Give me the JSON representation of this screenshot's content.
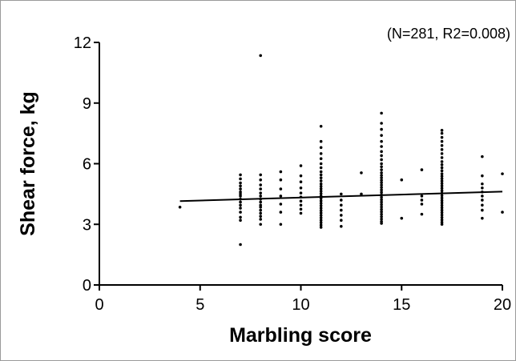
{
  "chart_data": {
    "type": "scatter",
    "annotation": "(N=281, R2=0.008)",
    "xlabel": "Marbling score",
    "ylabel": "Shear force, kg",
    "xlim": [
      0,
      20
    ],
    "ylim": [
      0,
      12
    ],
    "x_ticks": [
      0,
      5,
      10,
      15,
      20
    ],
    "y_ticks": [
      0,
      3,
      6,
      9,
      12
    ],
    "x_tick_labels": [
      "0",
      "5",
      "10",
      "15",
      "20"
    ],
    "y_tick_labels": [
      "0",
      "3",
      "6",
      "9",
      "12"
    ],
    "grid": false,
    "point_color": "#000000",
    "trendline": {
      "x": [
        4,
        20
      ],
      "y": [
        4.15,
        4.62
      ]
    },
    "points": [
      [
        4,
        3.85
      ],
      [
        7,
        5.45
      ],
      [
        7,
        5.25
      ],
      [
        7,
        5.05
      ],
      [
        7,
        4.9
      ],
      [
        7,
        4.75
      ],
      [
        7,
        4.6
      ],
      [
        7,
        4.5
      ],
      [
        7,
        4.4
      ],
      [
        7,
        4.25
      ],
      [
        7,
        4.1
      ],
      [
        7,
        3.95
      ],
      [
        7,
        3.8
      ],
      [
        7,
        3.6
      ],
      [
        7,
        3.35
      ],
      [
        7,
        3.2
      ],
      [
        7,
        2.0
      ],
      [
        8,
        11.35
      ],
      [
        8,
        5.45
      ],
      [
        8,
        5.2
      ],
      [
        8,
        4.95
      ],
      [
        8,
        4.75
      ],
      [
        8,
        4.55
      ],
      [
        8,
        4.4
      ],
      [
        8,
        4.25
      ],
      [
        8,
        4.1
      ],
      [
        8,
        3.95
      ],
      [
        8,
        3.85
      ],
      [
        8,
        3.7
      ],
      [
        8,
        3.55
      ],
      [
        8,
        3.4
      ],
      [
        8,
        3.25
      ],
      [
        8,
        3.0
      ],
      [
        9,
        5.6
      ],
      [
        9,
        5.2
      ],
      [
        9,
        4.75
      ],
      [
        9,
        4.4
      ],
      [
        9,
        4.0
      ],
      [
        9,
        3.6
      ],
      [
        9,
        3.0
      ],
      [
        10,
        5.9
      ],
      [
        10,
        5.4
      ],
      [
        10,
        5.1
      ],
      [
        10,
        4.8
      ],
      [
        10,
        4.55
      ],
      [
        10,
        4.35
      ],
      [
        10,
        4.15
      ],
      [
        10,
        3.95
      ],
      [
        10,
        3.75
      ],
      [
        10,
        3.55
      ],
      [
        11,
        7.85
      ],
      [
        11,
        7.1
      ],
      [
        11,
        6.8
      ],
      [
        11,
        6.5
      ],
      [
        11,
        6.25
      ],
      [
        11,
        6.0
      ],
      [
        11,
        5.8
      ],
      [
        11,
        5.6
      ],
      [
        11,
        5.45
      ],
      [
        11,
        5.3
      ],
      [
        11,
        5.15
      ],
      [
        11,
        5.0
      ],
      [
        11,
        4.88
      ],
      [
        11,
        4.76
      ],
      [
        11,
        4.64
      ],
      [
        11,
        4.52
      ],
      [
        11,
        4.4
      ],
      [
        11,
        4.28
      ],
      [
        11,
        4.16
      ],
      [
        11,
        4.04
      ],
      [
        11,
        3.92
      ],
      [
        11,
        3.8
      ],
      [
        11,
        3.68
      ],
      [
        11,
        3.56
      ],
      [
        11,
        3.44
      ],
      [
        11,
        3.32
      ],
      [
        11,
        3.2
      ],
      [
        11,
        3.08
      ],
      [
        11,
        2.96
      ],
      [
        11,
        2.85
      ],
      [
        12,
        4.5
      ],
      [
        12,
        4.2
      ],
      [
        12,
        3.95
      ],
      [
        12,
        3.7
      ],
      [
        12,
        3.45
      ],
      [
        12,
        3.2
      ],
      [
        12,
        2.9
      ],
      [
        13,
        5.55
      ],
      [
        13,
        4.5
      ],
      [
        14,
        8.5
      ],
      [
        14,
        8.0
      ],
      [
        14,
        7.7
      ],
      [
        14,
        7.4
      ],
      [
        14,
        7.1
      ],
      [
        14,
        6.85
      ],
      [
        14,
        6.6
      ],
      [
        14,
        6.4
      ],
      [
        14,
        6.2
      ],
      [
        14,
        6.0
      ],
      [
        14,
        5.85
      ],
      [
        14,
        5.7
      ],
      [
        14,
        5.55
      ],
      [
        14,
        5.42
      ],
      [
        14,
        5.3
      ],
      [
        14,
        5.18
      ],
      [
        14,
        5.06
      ],
      [
        14,
        4.94
      ],
      [
        14,
        4.82
      ],
      [
        14,
        4.7
      ],
      [
        14,
        4.58
      ],
      [
        14,
        4.46
      ],
      [
        14,
        4.34
      ],
      [
        14,
        4.22
      ],
      [
        14,
        4.1
      ],
      [
        14,
        3.98
      ],
      [
        14,
        3.86
      ],
      [
        14,
        3.74
      ],
      [
        14,
        3.62
      ],
      [
        14,
        3.5
      ],
      [
        14,
        3.38
      ],
      [
        14,
        3.26
      ],
      [
        14,
        3.14
      ],
      [
        14,
        3.05
      ],
      [
        15,
        5.2
      ],
      [
        15,
        3.3
      ],
      [
        16,
        5.7
      ],
      [
        16,
        4.4
      ],
      [
        16,
        4.2
      ],
      [
        16,
        4.0
      ],
      [
        16,
        3.5
      ],
      [
        17,
        7.65
      ],
      [
        17,
        7.5
      ],
      [
        17,
        7.3
      ],
      [
        17,
        7.1
      ],
      [
        17,
        6.9
      ],
      [
        17,
        6.7
      ],
      [
        17,
        6.5
      ],
      [
        17,
        6.3
      ],
      [
        17,
        6.1
      ],
      [
        17,
        5.95
      ],
      [
        17,
        5.8
      ],
      [
        17,
        5.65
      ],
      [
        17,
        5.5
      ],
      [
        17,
        5.38
      ],
      [
        17,
        5.26
      ],
      [
        17,
        5.14
      ],
      [
        17,
        5.02
      ],
      [
        17,
        4.9
      ],
      [
        17,
        4.78
      ],
      [
        17,
        4.66
      ],
      [
        17,
        4.54
      ],
      [
        17,
        4.42
      ],
      [
        17,
        4.3
      ],
      [
        17,
        4.18
      ],
      [
        17,
        4.06
      ],
      [
        17,
        3.94
      ],
      [
        17,
        3.82
      ],
      [
        17,
        3.7
      ],
      [
        17,
        3.58
      ],
      [
        17,
        3.46
      ],
      [
        17,
        3.34
      ],
      [
        17,
        3.22
      ],
      [
        17,
        3.1
      ],
      [
        17,
        3.0
      ],
      [
        19,
        6.35
      ],
      [
        19,
        5.4
      ],
      [
        19,
        5.0
      ],
      [
        19,
        4.8
      ],
      [
        19,
        4.6
      ],
      [
        19,
        4.4
      ],
      [
        19,
        4.2
      ],
      [
        19,
        3.95
      ],
      [
        19,
        3.7
      ],
      [
        19,
        3.3
      ],
      [
        20,
        5.5
      ],
      [
        20,
        3.6
      ]
    ]
  }
}
